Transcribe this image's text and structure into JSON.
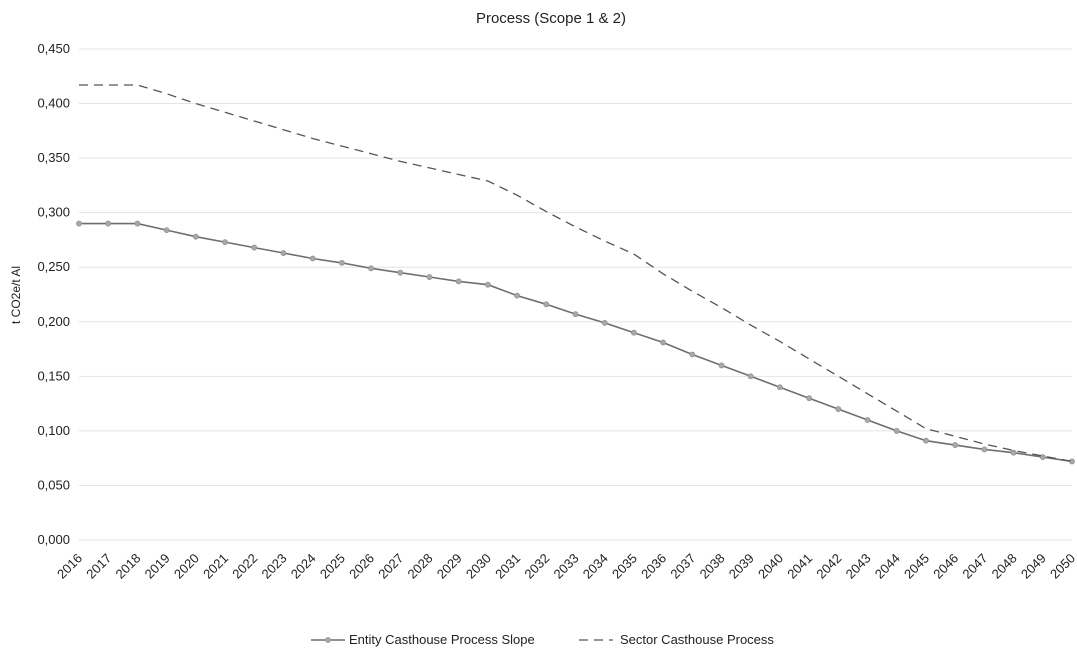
{
  "chart_data": {
    "type": "line",
    "title": "Process (Scope 1 & 2)",
    "xlabel": "",
    "ylabel": "t CO2e/t Al",
    "ylim": [
      0,
      0.45
    ],
    "yticks": [
      "0,000",
      "0,050",
      "0,100",
      "0,150",
      "0,200",
      "0,250",
      "0,300",
      "0,350",
      "0,400",
      "0,450"
    ],
    "grid": true,
    "legend_position": "bottom",
    "x": [
      "2016",
      "2017",
      "2018",
      "2019",
      "2020",
      "2021",
      "2022",
      "2023",
      "2024",
      "2025",
      "2026",
      "2027",
      "2028",
      "2029",
      "2030",
      "2031",
      "2032",
      "2033",
      "2034",
      "2035",
      "2036",
      "2037",
      "2038",
      "2039",
      "2040",
      "2041",
      "2042",
      "2043",
      "2044",
      "2045",
      "2046",
      "2047",
      "2048",
      "2049",
      "2050"
    ],
    "series": [
      {
        "name": "Entity Casthouse Process Slope",
        "style": "solid-markers",
        "color": "#6e6e6e",
        "values": [
          0.29,
          0.29,
          0.29,
          0.284,
          0.278,
          0.273,
          0.268,
          0.263,
          0.258,
          0.254,
          0.249,
          0.245,
          0.241,
          0.237,
          0.234,
          0.224,
          0.216,
          0.207,
          0.199,
          0.19,
          0.181,
          0.17,
          0.16,
          0.15,
          0.14,
          0.13,
          0.12,
          0.11,
          0.1,
          0.091,
          0.087,
          0.083,
          0.08,
          0.076,
          0.072
        ]
      },
      {
        "name": "Sector Casthouse Process",
        "style": "dashed",
        "color": "#555555",
        "values": [
          0.417,
          0.417,
          0.417,
          0.409,
          0.4,
          0.392,
          0.384,
          0.376,
          0.368,
          0.361,
          0.354,
          0.347,
          0.341,
          0.335,
          0.329,
          0.316,
          0.301,
          0.287,
          0.274,
          0.262,
          0.244,
          0.228,
          0.213,
          0.197,
          0.182,
          0.166,
          0.15,
          0.134,
          0.118,
          0.102,
          0.095,
          0.088,
          0.082,
          0.077,
          0.072
        ]
      }
    ]
  }
}
